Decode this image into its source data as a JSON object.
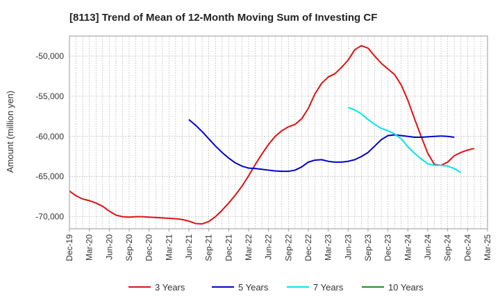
{
  "chart_data": {
    "type": "line",
    "title": "[8113]  Trend of Mean of 12-Month Moving Sum of Investing CF",
    "xlabel": "",
    "ylabel": "Amount (million yen)",
    "ylim": [
      -71500,
      -47500
    ],
    "yticks": [
      -50000,
      -55000,
      -60000,
      -65000,
      -70000
    ],
    "ytick_labels": [
      "-50,000",
      "-55,000",
      "-60,000",
      "-65,000",
      "-70,000"
    ],
    "x_start": "Dec-19",
    "x_end": "Mar-25",
    "xtick_labels": [
      "Dec-19",
      "Mar-20",
      "Jun-20",
      "Sep-20",
      "Dec-20",
      "Mar-21",
      "Jun-21",
      "Sep-21",
      "Dec-21",
      "Mar-22",
      "Jun-22",
      "Sep-22",
      "Dec-22",
      "Mar-23",
      "Jun-23",
      "Sep-23",
      "Dec-23",
      "Mar-24",
      "Jun-24",
      "Sep-24",
      "Dec-24",
      "Mar-25"
    ],
    "grid": true,
    "legend_position": "bottom",
    "series": [
      {
        "name": "3 Years",
        "color": "#dd1111",
        "start_index": 0,
        "values": [
          -66800,
          -67400,
          -67800,
          -68000,
          -68300,
          -68700,
          -69300,
          -69800,
          -70000,
          -70050,
          -70000,
          -70000,
          -70050,
          -70100,
          -70150,
          -70200,
          -70250,
          -70350,
          -70550,
          -70850,
          -70900,
          -70600,
          -70000,
          -69200,
          -68300,
          -67300,
          -66200,
          -64900,
          -63500,
          -62200,
          -61000,
          -60000,
          -59300,
          -58800,
          -58500,
          -57800,
          -56500,
          -54700,
          -53400,
          -52600,
          -52200,
          -51400,
          -50500,
          -49200,
          -48700,
          -49000,
          -50000,
          -50900,
          -51600,
          -52300,
          -53600,
          -55500,
          -57800,
          -60000,
          -62100,
          -63500,
          -63600,
          -63200,
          -62400,
          -62000,
          -61700,
          -61500
        ]
      },
      {
        "name": "5 Years",
        "color": "#0000cc",
        "start_index": 18,
        "values": [
          -57900,
          -58600,
          -59400,
          -60300,
          -61200,
          -62000,
          -62700,
          -63300,
          -63700,
          -63950,
          -64000,
          -64100,
          -64200,
          -64300,
          -64350,
          -64350,
          -64200,
          -63800,
          -63200,
          -62950,
          -62900,
          -63100,
          -63200,
          -63200,
          -63100,
          -62900,
          -62500,
          -62000,
          -61200,
          -60400,
          -59900,
          -59800,
          -59900,
          -60000,
          -60100,
          -60100,
          -60050,
          -60000,
          -59950,
          -60000,
          -60100
        ]
      },
      {
        "name": "7 Years",
        "color": "#00e5ee",
        "start_index": 42,
        "values": [
          -56400,
          -56700,
          -57200,
          -57900,
          -58500,
          -59000,
          -59300,
          -59700,
          -60300,
          -61300,
          -62100,
          -62800,
          -63400,
          -63600,
          -63600,
          -63700,
          -64000,
          -64500
        ]
      },
      {
        "name": "10 Years",
        "color": "#228b22",
        "start_index": 0,
        "values": []
      }
    ]
  }
}
